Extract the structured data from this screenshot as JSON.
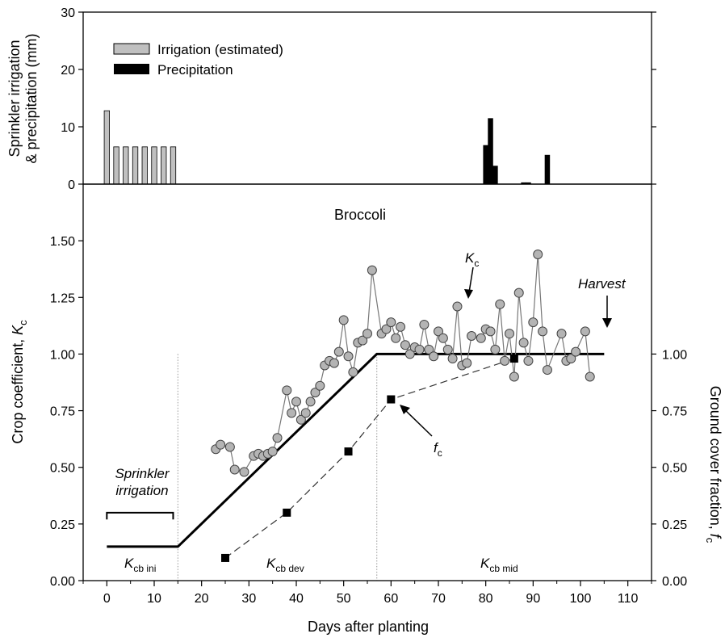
{
  "chart_data": [
    {
      "type": "bar",
      "ylabel_line1": "Sprinkler irrigation",
      "ylabel_line2": "& precipitation (mm)",
      "ylim": [
        0,
        30
      ],
      "yticks": [
        "0",
        "10",
        "20",
        "30"
      ],
      "legend": [
        {
          "label": "Irrigation (estimated)",
          "color": "#c0c0c0"
        },
        {
          "label": "Precipitation",
          "color": "#000000"
        }
      ],
      "series": [
        {
          "name": "Irrigation (estimated)",
          "color": "#c0c0c0",
          "points": [
            [
              0,
              12.8
            ],
            [
              2,
              6.5
            ],
            [
              4,
              6.5
            ],
            [
              6,
              6.5
            ],
            [
              8,
              6.5
            ],
            [
              10,
              6.5
            ],
            [
              12,
              6.5
            ],
            [
              14,
              6.5
            ]
          ]
        },
        {
          "name": "Precipitation",
          "color": "#000000",
          "points": [
            [
              80,
              6.8
            ],
            [
              81,
              11.5
            ],
            [
              82,
              3.2
            ],
            [
              88,
              0.3
            ],
            [
              89,
              0.3
            ],
            [
              93,
              5.1
            ]
          ]
        }
      ]
    },
    {
      "type": "line",
      "title": "Broccoli",
      "xlabel": "Days after planting",
      "ylabel_prefix": "Crop coefficient, ",
      "ylabel_sym": "K",
      "ylabel_sub": "c",
      "y2label_prefix": "Ground cover fraction, ",
      "y2label_sym": "f",
      "y2label_sub": "c",
      "xlim": [
        -5,
        115
      ],
      "ylim": [
        0,
        1.75
      ],
      "xticks": [
        "0",
        "10",
        "20",
        "30",
        "40",
        "50",
        "60",
        "70",
        "80",
        "90",
        "100",
        "110"
      ],
      "yticks": [
        "0.00",
        "0.25",
        "0.50",
        "0.75",
        "1.00",
        "1.25",
        "1.50"
      ],
      "y2ticks": [
        "0.00",
        "0.25",
        "0.50",
        "0.75",
        "1.00"
      ],
      "series": [
        {
          "name": "Kc",
          "style": "gray line with gray circle markers",
          "points": [
            [
              23,
              0.58
            ],
            [
              24,
              0.6
            ],
            [
              26,
              0.59
            ],
            [
              27,
              0.49
            ],
            [
              29,
              0.48
            ],
            [
              31,
              0.55
            ],
            [
              32,
              0.56
            ],
            [
              33,
              0.55
            ],
            [
              34,
              0.56
            ],
            [
              35,
              0.57
            ],
            [
              36,
              0.63
            ],
            [
              38,
              0.84
            ],
            [
              39,
              0.74
            ],
            [
              40,
              0.79
            ],
            [
              41,
              0.71
            ],
            [
              42,
              0.74
            ],
            [
              43,
              0.79
            ],
            [
              44,
              0.83
            ],
            [
              45,
              0.86
            ],
            [
              46,
              0.95
            ],
            [
              47,
              0.97
            ],
            [
              48,
              0.96
            ],
            [
              49,
              1.01
            ],
            [
              50,
              1.15
            ],
            [
              51,
              0.99
            ],
            [
              52,
              0.92
            ],
            [
              53,
              1.05
            ],
            [
              54,
              1.06
            ],
            [
              55,
              1.09
            ],
            [
              56,
              1.37
            ],
            [
              58,
              1.09
            ],
            [
              59,
              1.11
            ],
            [
              60,
              1.14
            ],
            [
              61,
              1.07
            ],
            [
              62,
              1.12
            ],
            [
              63,
              1.04
            ],
            [
              64,
              1.0
            ],
            [
              65,
              1.03
            ],
            [
              66,
              1.02
            ],
            [
              67,
              1.13
            ],
            [
              68,
              1.02
            ],
            [
              69,
              0.99
            ],
            [
              70,
              1.1
            ],
            [
              71,
              1.07
            ],
            [
              72,
              1.02
            ],
            [
              73,
              0.98
            ],
            [
              74,
              1.21
            ],
            [
              75,
              0.95
            ],
            [
              76,
              0.96
            ],
            [
              77,
              1.08
            ],
            [
              79,
              1.07
            ],
            [
              80,
              1.11
            ],
            [
              81,
              1.1
            ],
            [
              82,
              1.02
            ],
            [
              83,
              1.22
            ],
            [
              84,
              0.97
            ],
            [
              85,
              1.09
            ],
            [
              86,
              0.9
            ],
            [
              87,
              1.27
            ],
            [
              88,
              1.05
            ],
            [
              89,
              0.97
            ],
            [
              90,
              1.14
            ],
            [
              91,
              1.44
            ],
            [
              92,
              1.1
            ],
            [
              93,
              0.93
            ],
            [
              96,
              1.09
            ],
            [
              97,
              0.97
            ],
            [
              98,
              0.98
            ],
            [
              99,
              1.01
            ],
            [
              101,
              1.1
            ],
            [
              102,
              0.9
            ]
          ]
        },
        {
          "name": "fc",
          "style": "dashed line with black square markers",
          "points": [
            [
              25,
              0.1
            ],
            [
              38,
              0.3
            ],
            [
              51,
              0.57
            ],
            [
              60,
              0.8
            ],
            [
              86,
              0.98
            ]
          ]
        },
        {
          "name": "Kcb",
          "style": "thick black line",
          "points": [
            [
              0,
              0.15
            ],
            [
              15,
              0.15
            ],
            [
              57,
              1.0
            ],
            [
              105,
              1.0
            ]
          ]
        }
      ],
      "stage_boundaries_days": [
        15,
        57
      ],
      "annotations": {
        "sprinkler_line1": "Sprinkler",
        "sprinkler_line2": "irrigation",
        "sprinkler_bracket_days": [
          0,
          14
        ],
        "kc_label_sym": "K",
        "kc_label_sub": "c",
        "fc_label_sym": "f",
        "fc_label_sub": "c",
        "harvest": "Harvest",
        "stage_ini_sym": "K",
        "stage_ini_sub": "cb ini",
        "stage_dev_sym": "K",
        "stage_dev_sub": "cb dev",
        "stage_mid_sym": "K",
        "stage_mid_sub": "cb mid"
      }
    }
  ]
}
